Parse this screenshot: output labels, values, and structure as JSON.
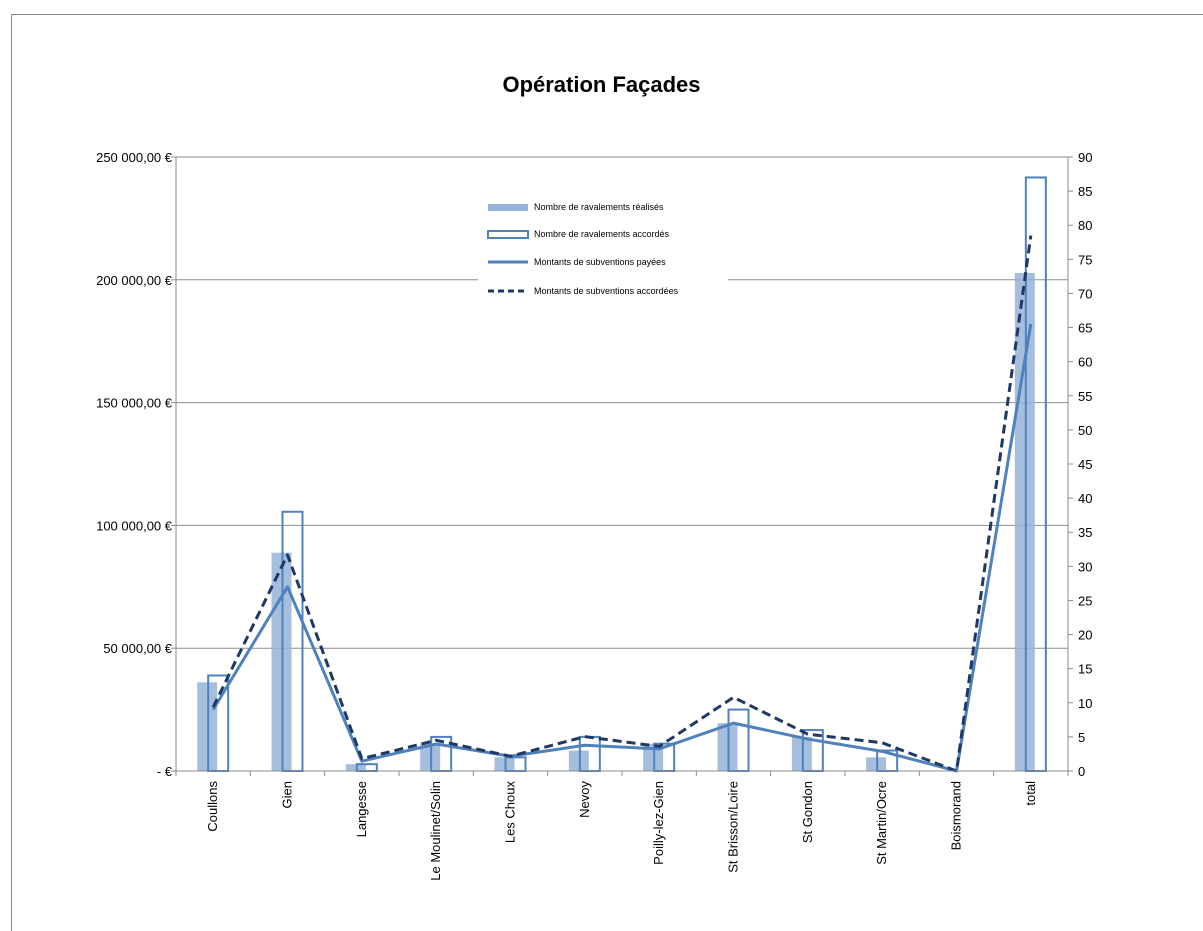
{
  "chart_data": {
    "type": "bar",
    "title": "Opération Façades",
    "categories": [
      "Coullons",
      "Gien",
      "Langesse",
      "Le Moulinet/Solin",
      "Les Choux",
      "Nevoy",
      "Poilly-lez-Gien",
      "St Brisson/Loire",
      "St Gondon",
      "St Martin/Ocre",
      "Boismorand",
      "total"
    ],
    "y_left": {
      "ylim": [
        0,
        250000
      ],
      "ticks": [
        0,
        50000,
        100000,
        150000,
        200000,
        250000
      ],
      "tick_labels": [
        "-   €",
        "50 000,00 €",
        "100 000,00 €",
        "150 000,00 €",
        "200 000,00 €",
        "250 000,00 €"
      ]
    },
    "y_right": {
      "ylim": [
        0,
        90
      ],
      "ticks": [
        0,
        5,
        10,
        15,
        20,
        25,
        30,
        35,
        40,
        45,
        50,
        55,
        60,
        65,
        70,
        75,
        80,
        85,
        90
      ],
      "tick_labels": [
        "0",
        "5",
        "10",
        "15",
        "20",
        "25",
        "30",
        "35",
        "40",
        "45",
        "50",
        "55",
        "60",
        "65",
        "70",
        "75",
        "80",
        "85",
        "90"
      ]
    },
    "grid": true,
    "legend_position": "top-center",
    "series": [
      {
        "name": "Nombre de ravalements réalisés",
        "kind": "bar-filled",
        "axis": "right",
        "color": "#95b3d7",
        "values": [
          13,
          32,
          1,
          4,
          2,
          3,
          4,
          7,
          5,
          2,
          0,
          73
        ]
      },
      {
        "name": "Nombre de ravalements accordés",
        "kind": "bar-outline",
        "axis": "right",
        "color": "#4f81bd",
        "values": [
          14,
          38,
          1,
          5,
          2,
          5,
          4,
          9,
          6,
          3,
          0,
          87
        ]
      },
      {
        "name": "Montants de subventions payées",
        "kind": "line-solid",
        "axis": "left",
        "color": "#4f81bd",
        "values": [
          25000,
          75000,
          4000,
          11000,
          6000,
          10500,
          9000,
          19500,
          13000,
          8000,
          0,
          182000
        ]
      },
      {
        "name": "Montants de subventions accordées",
        "kind": "line-dashed",
        "axis": "left",
        "color": "#1f3864",
        "values": [
          26000,
          88000,
          5000,
          12500,
          6000,
          14000,
          10000,
          30000,
          15000,
          11500,
          0,
          218000
        ]
      }
    ]
  }
}
